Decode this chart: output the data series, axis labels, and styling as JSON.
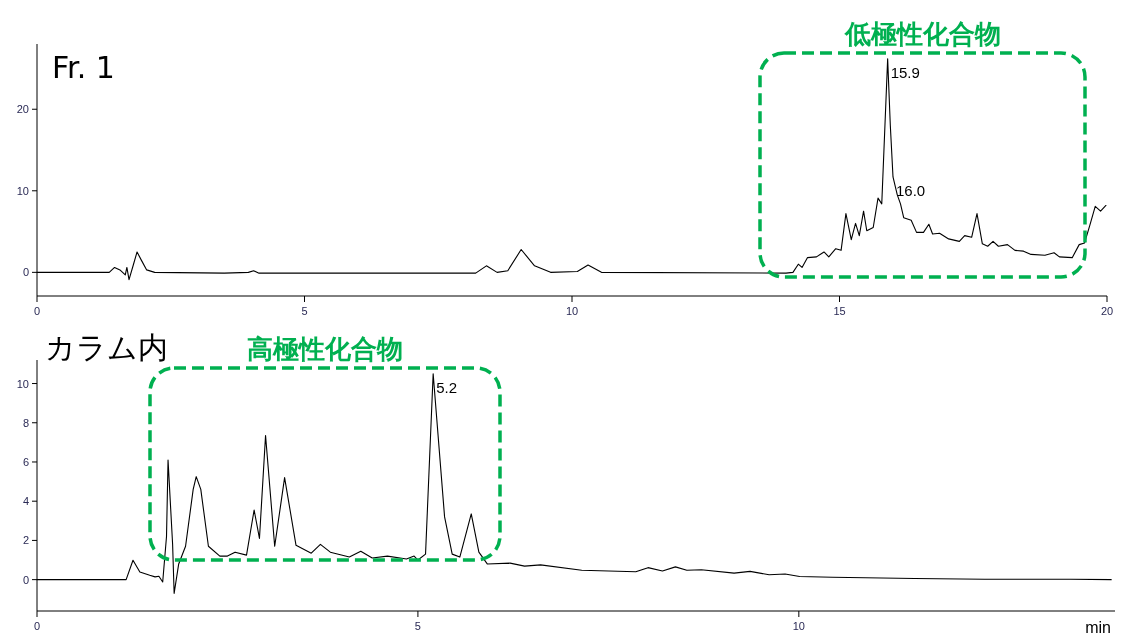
{
  "chart_data": [
    {
      "type": "line",
      "title": "Fr. 1",
      "xlim": [
        0,
        20
      ],
      "ylim": [
        -2.9,
        28
      ],
      "xticks": [
        0,
        5,
        10,
        15,
        20
      ],
      "yticks": [
        0,
        10,
        20
      ],
      "grid": false,
      "series": [
        {
          "color": "#000000",
          "x": [
            0,
            1.35,
            1.45,
            1.55,
            1.65,
            1.68,
            1.72,
            1.8,
            1.87,
            1.95,
            2.05,
            2.2,
            3.5,
            3.95,
            4.05,
            4.15,
            8.2,
            8.4,
            8.6,
            8.8,
            9.05,
            9.3,
            9.6,
            10.1,
            10.3,
            10.55,
            14.0,
            14.13,
            14.23,
            14.3,
            14.4,
            14.57,
            14.71,
            14.8,
            14.93,
            15.03,
            15.12,
            15.22,
            15.3,
            15.37,
            15.45,
            15.51,
            15.63,
            15.72,
            15.79,
            15.9,
            15.95,
            16.0,
            16.08,
            16.14,
            16.2,
            16.34,
            16.44,
            16.57,
            16.67,
            16.74,
            16.87,
            17.04,
            17.24,
            17.34,
            17.47,
            17.57,
            17.67,
            17.77,
            17.87,
            17.97,
            18.14,
            18.28,
            18.44,
            18.58,
            18.84,
            19.01,
            19.11,
            19.35,
            19.48,
            19.58,
            19.68,
            19.78,
            19.88,
            19.98
          ],
          "values": [
            0,
            0,
            0.6,
            0.3,
            -0.3,
            0.6,
            -0.9,
            0.9,
            2.5,
            1.5,
            0.3,
            0,
            -0.1,
            0,
            0.2,
            -0.1,
            -0.1,
            0.8,
            0,
            0.2,
            2.8,
            0.8,
            0,
            0.1,
            0.9,
            0,
            -0.1,
            0,
            1.0,
            0.6,
            1.8,
            1.9,
            2.5,
            1.9,
            2.9,
            2.7,
            7.2,
            4.0,
            6.0,
            4.5,
            7.5,
            5.1,
            5.5,
            9.1,
            8.4,
            26.2,
            18.0,
            11.7,
            9.5,
            8.4,
            6.7,
            6.4,
            4.9,
            4.9,
            5.9,
            4.7,
            4.8,
            4.1,
            3.8,
            4.5,
            4.3,
            7.2,
            3.5,
            3.2,
            3.8,
            3.2,
            3.4,
            2.7,
            2.6,
            2.2,
            2.1,
            2.4,
            1.9,
            1.8,
            3.4,
            3.6,
            5.8,
            8.1,
            7.5,
            8.2
          ]
        }
      ],
      "annotations": [
        {
          "text": "15.9",
          "x": 15.9,
          "y": 26.2
        },
        {
          "text": "16.0",
          "x": 16.0,
          "y": 11.7
        },
        "低極性化合物"
      ]
    },
    {
      "type": "line",
      "title": "カラム内",
      "xlabel": "min",
      "xlim": [
        0,
        14.15
      ],
      "ylim": [
        -1.6,
        11.2
      ],
      "xticks": [
        0,
        5,
        10
      ],
      "yticks": [
        0,
        2,
        4,
        6,
        8,
        10
      ],
      "grid": false,
      "series": [
        {
          "color": "#000000",
          "x": [
            0,
            1.17,
            1.26,
            1.35,
            1.48,
            1.55,
            1.6,
            1.65,
            1.7,
            1.72,
            1.78,
            1.8,
            1.86,
            1.95,
            2.05,
            2.09,
            2.15,
            2.25,
            2.4,
            2.5,
            2.6,
            2.75,
            2.85,
            2.92,
            3.0,
            3.12,
            3.25,
            3.4,
            3.6,
            3.72,
            3.85,
            4.1,
            4.25,
            4.4,
            4.6,
            4.85,
            4.95,
            5.0,
            5.1,
            5.2,
            5.35,
            5.45,
            5.55,
            5.7,
            5.8,
            5.91,
            6.21,
            6.4,
            6.61,
            7.15,
            7.86,
            8.02,
            8.21,
            8.38,
            8.53,
            8.72,
            9.15,
            9.36,
            9.61,
            9.82,
            10.01,
            10.44,
            11.52,
            12.44,
            13.57,
            14.1
          ],
          "values": [
            0,
            0,
            0.99,
            0.39,
            0.22,
            0.14,
            0.17,
            -0.12,
            2.2,
            6.1,
            1.8,
            -0.7,
            0.8,
            1.7,
            4.6,
            5.25,
            4.6,
            1.7,
            1.2,
            1.2,
            1.4,
            1.25,
            3.55,
            2.1,
            7.35,
            1.7,
            5.2,
            1.75,
            1.35,
            1.8,
            1.4,
            1.15,
            1.45,
            1.1,
            1.2,
            1.05,
            1.2,
            1.0,
            1.3,
            10.5,
            3.2,
            1.3,
            1.15,
            3.35,
            1.4,
            0.8,
            0.84,
            0.69,
            0.75,
            0.48,
            0.4,
            0.61,
            0.44,
            0.65,
            0.48,
            0.5,
            0.33,
            0.42,
            0.25,
            0.29,
            0.16,
            0.12,
            0.06,
            0.02,
            0.02,
            0.0
          ]
        }
      ],
      "annotations": [
        {
          "text": "5.2",
          "x": 5.2,
          "y": 10.5
        },
        "高極性化合物"
      ]
    }
  ]
}
